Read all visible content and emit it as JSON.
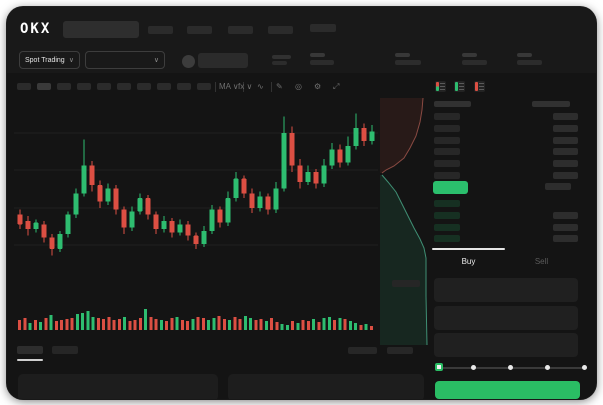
{
  "window_title": "OKX Spot Trading",
  "header": {
    "logo_text": "OKX",
    "nav_placeholder_count": 5,
    "market_selector_label": "Spot Trading",
    "market_selector_chevron": "∨",
    "pair_selector_chevron": "∨"
  },
  "toolbar": {
    "timeframe_placeholder_count": 10,
    "tools": [
      {
        "name": "indicator-dropdown",
        "glyph": "MA ∨"
      },
      {
        "name": "overlay-dropdown",
        "glyph": "fx ∨"
      },
      {
        "name": "line-tool",
        "glyph": "∿"
      },
      {
        "name": "draw-tool",
        "glyph": "✎"
      },
      {
        "name": "snapshot-tool",
        "glyph": "◎"
      },
      {
        "name": "settings-tool",
        "glyph": "⚙"
      },
      {
        "name": "fullscreen-tool",
        "glyph": "⤢"
      }
    ]
  },
  "colors": {
    "up": "#2ebd70",
    "down": "#dc4f43",
    "price_pill": "#2bbf6d",
    "buy_button": "#2abd64",
    "grid": "#1f1f1f",
    "depth_ask_line": "#8a4a42",
    "depth_ask_fill": "rgba(150,60,50,0.16)",
    "depth_bid_line": "#3f8f74",
    "depth_bid_fill": "rgba(45,140,100,0.16)",
    "bid_tint": "#163022"
  },
  "chart_data": {
    "type": "candlestick",
    "title": "",
    "grid": true,
    "price_scale": {
      "min": 0,
      "max": 110
    },
    "candles_ochl": [
      [
        42,
        36,
        45,
        33
      ],
      [
        38,
        33,
        41,
        29
      ],
      [
        33,
        37,
        39,
        31
      ],
      [
        36,
        28,
        38,
        25
      ],
      [
        28,
        21,
        30,
        17
      ],
      [
        21,
        30,
        32,
        19
      ],
      [
        30,
        42,
        44,
        28
      ],
      [
        42,
        55,
        58,
        40
      ],
      [
        55,
        72,
        88,
        53
      ],
      [
        72,
        60,
        75,
        56
      ],
      [
        60,
        50,
        63,
        46
      ],
      [
        50,
        58,
        61,
        48
      ],
      [
        58,
        45,
        60,
        42
      ],
      [
        45,
        34,
        47,
        30
      ],
      [
        34,
        44,
        47,
        32
      ],
      [
        44,
        52,
        55,
        42
      ],
      [
        52,
        42,
        54,
        39
      ],
      [
        42,
        33,
        44,
        30
      ],
      [
        33,
        38,
        41,
        31
      ],
      [
        38,
        31,
        40,
        28
      ],
      [
        31,
        36,
        39,
        29
      ],
      [
        36,
        29,
        38,
        26
      ],
      [
        29,
        24,
        31,
        21
      ],
      [
        24,
        32,
        35,
        22
      ],
      [
        32,
        45,
        48,
        30
      ],
      [
        45,
        37,
        47,
        34
      ],
      [
        37,
        52,
        56,
        35
      ],
      [
        52,
        64,
        68,
        50
      ],
      [
        64,
        55,
        66,
        52
      ],
      [
        55,
        46,
        58,
        43
      ],
      [
        46,
        53,
        56,
        44
      ],
      [
        53,
        45,
        55,
        42
      ],
      [
        45,
        58,
        62,
        43
      ],
      [
        58,
        92,
        102,
        56
      ],
      [
        92,
        72,
        96,
        68
      ],
      [
        72,
        62,
        76,
        58
      ],
      [
        62,
        68,
        72,
        60
      ],
      [
        68,
        61,
        70,
        58
      ],
      [
        61,
        72,
        76,
        59
      ],
      [
        72,
        82,
        86,
        70
      ],
      [
        82,
        74,
        85,
        71
      ],
      [
        74,
        84,
        90,
        72
      ],
      [
        84,
        95,
        104,
        82
      ],
      [
        95,
        87,
        98,
        84
      ],
      [
        87,
        93,
        97,
        85
      ]
    ],
    "volume": {
      "heights": [
        10,
        12,
        7,
        10,
        8,
        12,
        15,
        9,
        10,
        11,
        12,
        16,
        17,
        19,
        13,
        12,
        11,
        13,
        10,
        11,
        13,
        9,
        10,
        12,
        21,
        13,
        11,
        10,
        9,
        12,
        13,
        10,
        9,
        11,
        13,
        12,
        10,
        12,
        14,
        11,
        10,
        13,
        11,
        14,
        12,
        10,
        11,
        9,
        12,
        8,
        6,
        5,
        9,
        7,
        10,
        9,
        11,
        8,
        12,
        13,
        10,
        12,
        11,
        9,
        7,
        5,
        6,
        4
      ],
      "colors": "rrgrgrgrrrrggggrrrrrgrrrgrrgrrgrrgrrggrrgrrggrrgrrggrgrrgrggrgrggrgr"
    },
    "depth": {
      "asks_line": [
        [
          43,
          2
        ],
        [
          42,
          14
        ],
        [
          40,
          26
        ],
        [
          36,
          40
        ],
        [
          30,
          52
        ],
        [
          24,
          62
        ],
        [
          14,
          70
        ],
        [
          6,
          74
        ],
        [
          2,
          77
        ]
      ],
      "bids_line": [
        [
          2,
          79
        ],
        [
          8,
          86
        ],
        [
          16,
          96
        ],
        [
          22,
          108
        ],
        [
          28,
          120
        ],
        [
          34,
          132
        ],
        [
          40,
          143
        ],
        [
          44,
          152
        ],
        [
          46,
          162
        ],
        [
          46,
          200
        ],
        [
          47,
          249
        ]
      ]
    }
  },
  "orderbook": {
    "view_modes": [
      {
        "name": "combined-view",
        "strip": "split"
      },
      {
        "name": "bids-view",
        "strip": "green"
      },
      {
        "name": "asks-view",
        "strip": "red"
      }
    ],
    "ask_rows": [
      {
        "r": true
      },
      {
        "r": true
      },
      {
        "r": true
      },
      {
        "r": true
      },
      {
        "r": true
      },
      {
        "r": true
      }
    ],
    "price_row": {
      "highlighted": true,
      "right_block": true
    },
    "bid_rows": [
      {
        "r": false
      },
      {
        "r": true
      },
      {
        "r": true
      },
      {
        "r": true
      }
    ]
  },
  "trade_panel": {
    "buy_tab": "Buy",
    "sell_tab": "Sell",
    "active_tab": "Buy",
    "field_count": 3,
    "slider": {
      "stops": 5,
      "percent": 0
    }
  }
}
